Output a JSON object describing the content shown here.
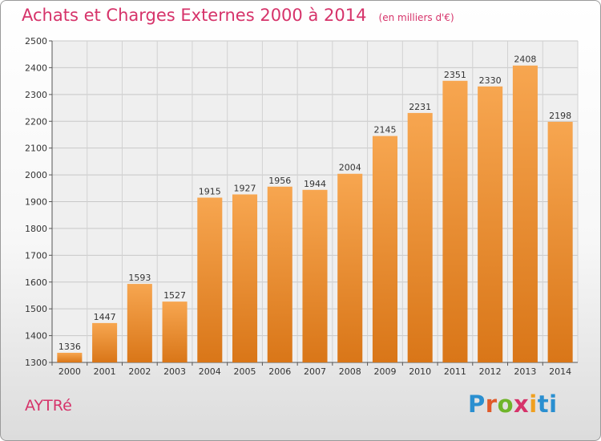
{
  "header": {
    "title": "Achats et Charges Externes 2000 à 2014",
    "subtitle": "(en milliers d'€)"
  },
  "footer": {
    "city": "AYTRé",
    "brand": "Proxiti"
  },
  "colors": {
    "bar_light": "#f7a650",
    "bar_dark": "#d97618",
    "title": "#d6336a"
  },
  "chart_data": {
    "type": "bar",
    "title": "Achats et Charges Externes 2000 à 2014",
    "subtitle": "(en milliers d'€)",
    "categories": [
      "2000",
      "2001",
      "2002",
      "2003",
      "2004",
      "2005",
      "2006",
      "2007",
      "2008",
      "2009",
      "2010",
      "2011",
      "2012",
      "2013",
      "2014"
    ],
    "values": [
      1336,
      1447,
      1593,
      1527,
      1915,
      1927,
      1956,
      1944,
      2004,
      2145,
      2231,
      2351,
      2330,
      2408,
      2198
    ],
    "ylim": [
      1300,
      2500
    ],
    "yticks": [
      1300,
      1400,
      1500,
      1600,
      1700,
      1800,
      1900,
      2000,
      2100,
      2200,
      2300,
      2400,
      2500
    ],
    "grid": true,
    "data_labels": true
  }
}
